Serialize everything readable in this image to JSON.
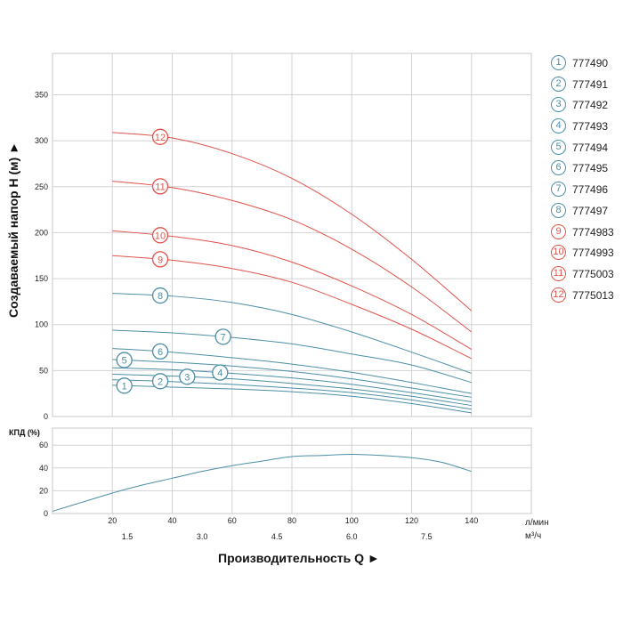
{
  "chart_data": [
    {
      "type": "line",
      "ylabel": "Создаваемый напор H (м) ►",
      "ylim": [
        0,
        395
      ],
      "y_ticks": [
        "0",
        "50",
        "100",
        "150",
        "200",
        "250",
        "300",
        "350"
      ],
      "xlim": [
        0,
        160
      ],
      "x_gridlines": [
        20,
        40,
        60,
        80,
        100,
        120,
        140
      ],
      "grid": true,
      "legend_position": "right",
      "series": [
        {
          "name": "777490",
          "marker": "1",
          "color": "#4d8ea6",
          "x": [
            20,
            40,
            60,
            80,
            100,
            120,
            140
          ],
          "y": [
            34,
            32,
            30,
            27,
            22,
            14,
            4
          ]
        },
        {
          "name": "777491",
          "marker": "2",
          "color": "#4d8ea6",
          "x": [
            20,
            40,
            60,
            80,
            100,
            120,
            140
          ],
          "y": [
            40,
            38,
            35,
            31,
            26,
            18,
            8
          ]
        },
        {
          "name": "777492",
          "marker": "3",
          "color": "#4d8ea6",
          "x": [
            20,
            40,
            60,
            80,
            100,
            120,
            140
          ],
          "y": [
            46,
            44,
            41,
            36,
            30,
            22,
            12
          ]
        },
        {
          "name": "777493",
          "marker": "4",
          "color": "#4d8ea6",
          "x": [
            20,
            40,
            60,
            80,
            100,
            120,
            140
          ],
          "y": [
            53,
            51,
            47,
            42,
            35,
            26,
            16
          ]
        },
        {
          "name": "777494",
          "marker": "5",
          "color": "#4d8ea6",
          "x": [
            20,
            40,
            60,
            80,
            100,
            120,
            140
          ],
          "y": [
            62,
            59,
            55,
            49,
            41,
            31,
            21
          ]
        },
        {
          "name": "777495",
          "marker": "6",
          "color": "#4d8ea6",
          "x": [
            20,
            40,
            60,
            80,
            100,
            120,
            140
          ],
          "y": [
            74,
            70,
            64,
            57,
            48,
            37,
            25
          ]
        },
        {
          "name": "777496",
          "marker": "7",
          "color": "#4d8ea6",
          "x": [
            20,
            40,
            60,
            80,
            100,
            120,
            140
          ],
          "y": [
            94,
            91,
            86,
            79,
            68,
            56,
            37
          ]
        },
        {
          "name": "777497",
          "marker": "8",
          "color": "#4d8ea6",
          "x": [
            20,
            40,
            60,
            80,
            100,
            120,
            140
          ],
          "y": [
            134,
            131,
            124,
            111,
            92,
            70,
            47
          ]
        },
        {
          "name": "7774983",
          "marker": "9",
          "color": "#e0534a",
          "x": [
            20,
            40,
            60,
            80,
            100,
            120,
            140
          ],
          "y": [
            175,
            170,
            161,
            146,
            122,
            95,
            63
          ]
        },
        {
          "name": "7774993",
          "marker": "10",
          "color": "#e0534a",
          "x": [
            20,
            40,
            60,
            80,
            100,
            120,
            140
          ],
          "y": [
            202,
            196,
            186,
            168,
            142,
            111,
            73
          ]
        },
        {
          "name": "7775003",
          "marker": "11",
          "color": "#e0534a",
          "x": [
            20,
            40,
            60,
            80,
            100,
            120,
            140
          ],
          "y": [
            256,
            249,
            235,
            214,
            182,
            141,
            92
          ]
        },
        {
          "name": "7775013",
          "marker": "12",
          "color": "#e0534a",
          "x": [
            20,
            40,
            60,
            80,
            100,
            120,
            140
          ],
          "y": [
            309,
            303,
            286,
            259,
            220,
            171,
            115
          ]
        }
      ]
    },
    {
      "type": "line",
      "ylabel": "КПД (%)",
      "ylim": [
        0,
        75
      ],
      "y_ticks": [
        "0",
        "20",
        "40",
        "60"
      ],
      "xlabel": "Производительность Q ►",
      "x_ticks_lpm": [
        "20",
        "40",
        "60",
        "80",
        "100",
        "120",
        "140"
      ],
      "x_unit_lpm": "л/мин",
      "x_ticks_m3h": [
        "1.5",
        "3.0",
        "4.5",
        "6.0",
        "7.5"
      ],
      "x_unit_m3h": "м³/ч",
      "grid": true,
      "series": [
        {
          "color": "#4d8ea6",
          "x": [
            0,
            10,
            20,
            30,
            40,
            50,
            60,
            70,
            80,
            90,
            100,
            110,
            120,
            130,
            140
          ],
          "y": [
            2,
            10,
            18,
            25,
            31,
            37,
            42,
            46,
            50,
            51,
            52,
            51,
            49,
            45,
            37
          ]
        }
      ]
    }
  ],
  "legend": [
    {
      "marker": "1",
      "label": "777490",
      "color": "#4d8ea6"
    },
    {
      "marker": "2",
      "label": "777491",
      "color": "#4d8ea6"
    },
    {
      "marker": "3",
      "label": "777492",
      "color": "#4d8ea6"
    },
    {
      "marker": "4",
      "label": "777493",
      "color": "#4d8ea6"
    },
    {
      "marker": "5",
      "label": "777494",
      "color": "#4d8ea6"
    },
    {
      "marker": "6",
      "label": "777495",
      "color": "#4d8ea6"
    },
    {
      "marker": "7",
      "label": "777496",
      "color": "#4d8ea6"
    },
    {
      "marker": "8",
      "label": "777497",
      "color": "#4d8ea6"
    },
    {
      "marker": "9",
      "label": "7774983",
      "color": "#e0534a"
    },
    {
      "marker": "10",
      "label": "7774993",
      "color": "#e0534a"
    },
    {
      "marker": "11",
      "label": "7775003",
      "color": "#e0534a"
    },
    {
      "marker": "12",
      "label": "7775013",
      "color": "#e0534a"
    }
  ],
  "axis_titles": {
    "head": "Создаваемый напор H (м) ►",
    "efficiency": "КПД (%)",
    "flow": "Производительность Q ►",
    "unit_lpm": "л/мин",
    "unit_m3h": "м³/ч"
  }
}
